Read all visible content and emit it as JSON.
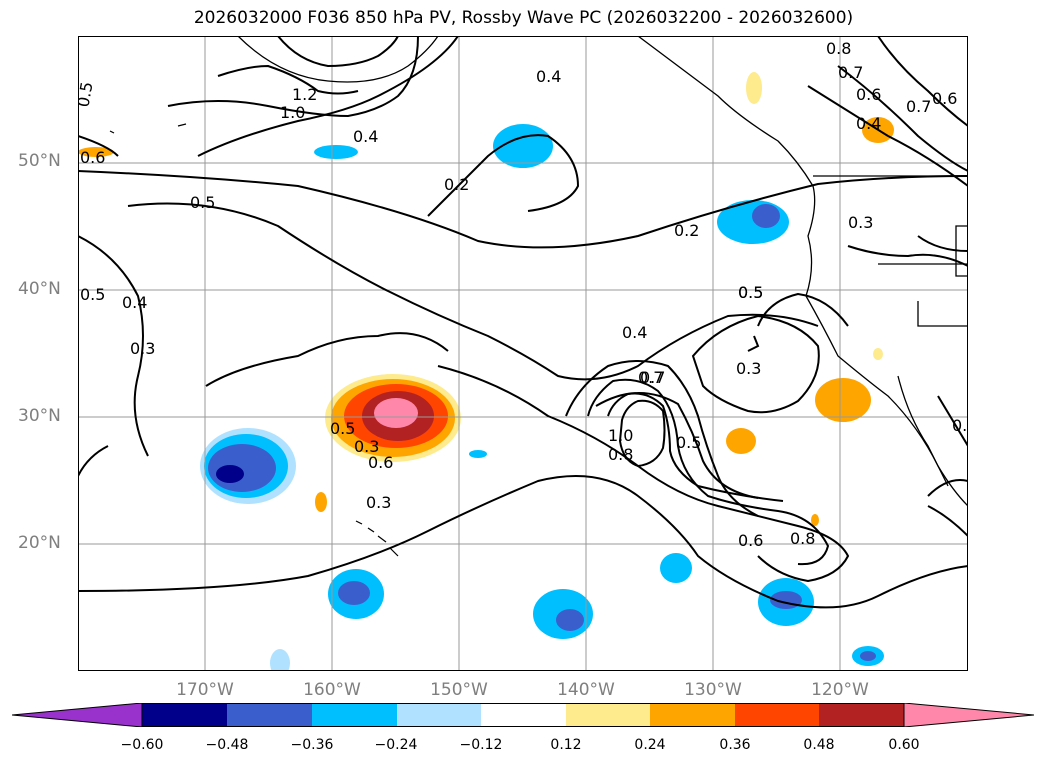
{
  "title": "2026032000 F036 850 hPa PV, Rossby Wave PC (2026032200 - 2026032600)",
  "lat_labels": [
    "50°N",
    "40°N",
    "30°N",
    "20°N"
  ],
  "lon_labels": [
    "170°W",
    "160°W",
    "150°W",
    "140°W",
    "130°W",
    "120°W"
  ],
  "contour_labels": [
    "0.5",
    "0.6",
    "1.0",
    "1.2",
    "0.4",
    "0.8",
    "0.7",
    "0.6",
    "0.7",
    "0.4",
    "0.5",
    "0.2",
    "0.5",
    "0.2",
    "0.3",
    "0.5",
    "0.4",
    "0.3",
    "0.5",
    "0.3",
    "0.4",
    "0.7",
    "1.0",
    "0.8",
    "0.5",
    "0.6",
    "0.8",
    "0.5",
    "0.7",
    "0.6",
    "0.3",
    "0.6",
    "0.4",
    "0.4",
    "0.3"
  ],
  "colorbar": {
    "ticks": [
      "−0.60",
      "−0.48",
      "−0.36",
      "−0.24",
      "−0.12",
      "0.12",
      "0.24",
      "0.36",
      "0.48",
      "0.60"
    ],
    "colors": [
      "#9932cc",
      "#00008b",
      "#3a5fcd",
      "#00bfff",
      "#b0e2ff",
      "#ffffff",
      "#fdeb8e",
      "#ffa500",
      "#ff4500",
      "#b22222",
      "#ff88aa"
    ]
  }
}
